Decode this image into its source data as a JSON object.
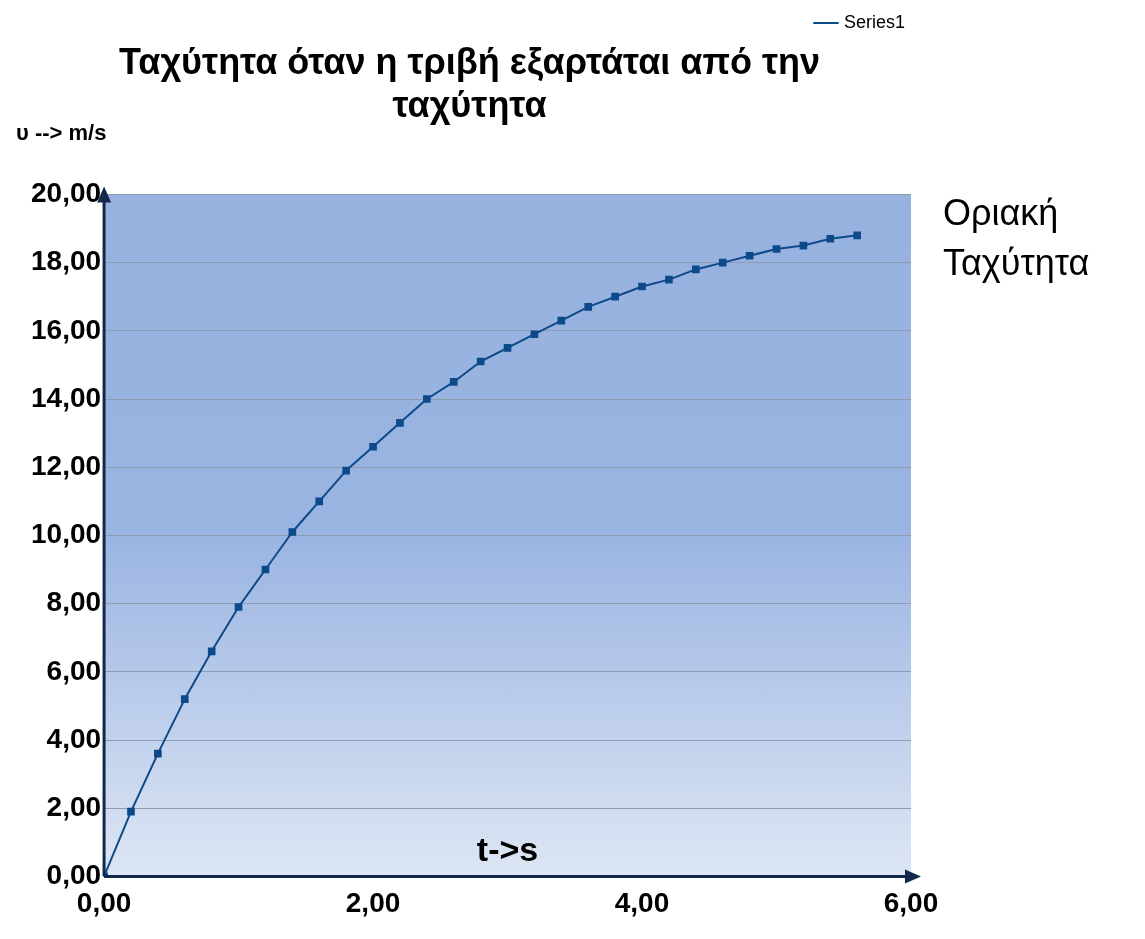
{
  "chart_data": {
    "type": "line",
    "title": "Ταχύτητα όταν η τριβή εξαρτάται από την ταχύτητα",
    "xlabel": "t->s",
    "ylabel": "υ --> m/s",
    "annotations": [
      "Οριακή Ταχύτητα"
    ],
    "x": [
      0,
      0.2,
      0.4,
      0.6,
      0.8,
      1.0,
      1.2,
      1.4,
      1.6,
      1.8,
      2.0,
      2.2,
      2.4,
      2.6,
      2.8,
      3.0,
      3.2,
      3.4,
      3.6,
      3.8,
      4.0,
      4.2,
      4.4,
      4.6,
      4.8,
      5.0,
      5.2,
      5.4,
      5.6
    ],
    "series": [
      {
        "name": "Series1",
        "color": "#0d4a8a",
        "values": [
          0,
          1.9,
          3.6,
          5.2,
          6.6,
          7.9,
          9.0,
          10.1,
          11.0,
          11.9,
          12.6,
          13.3,
          14.0,
          14.5,
          15.1,
          15.5,
          15.9,
          16.3,
          16.7,
          17.0,
          17.3,
          17.5,
          17.8,
          18.0,
          18.2,
          18.4,
          18.5,
          18.7,
          18.8
        ]
      }
    ],
    "xlim": [
      0,
      6
    ],
    "xticks": [
      {
        "value": 0,
        "label": "0,00"
      },
      {
        "value": 2,
        "label": "2,00"
      },
      {
        "value": 4,
        "label": "4,00"
      },
      {
        "value": 6,
        "label": "6,00"
      }
    ],
    "ylim": [
      0,
      20
    ],
    "yticks": [
      {
        "value": 0,
        "label": "0,00"
      },
      {
        "value": 2,
        "label": "2,00"
      },
      {
        "value": 4,
        "label": "4,00"
      },
      {
        "value": 6,
        "label": "6,00"
      },
      {
        "value": 8,
        "label": "8,00"
      },
      {
        "value": 10,
        "label": "10,00"
      },
      {
        "value": 12,
        "label": "12,00"
      },
      {
        "value": 14,
        "label": "14,00"
      },
      {
        "value": 16,
        "label": "16,00"
      },
      {
        "value": 18,
        "label": "18,00"
      },
      {
        "value": 20,
        "label": "20,00"
      }
    ],
    "grid": "y",
    "legend": "top right",
    "marker": "square",
    "line_style": "solid"
  }
}
